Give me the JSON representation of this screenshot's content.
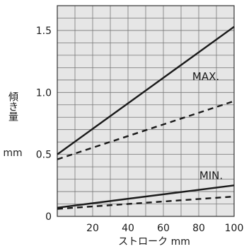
{
  "chart_data": {
    "type": "line",
    "xlabel": "ストローク mm",
    "ylabel_text": "傾き量",
    "ylabel_unit": "mm",
    "x_ticks": [
      "20",
      "40",
      "60",
      "80",
      "100"
    ],
    "y_ticks": [
      "0",
      "0.5",
      "1.0",
      "1.5"
    ],
    "xlim": [
      0,
      100
    ],
    "ylim": [
      0,
      1.7
    ],
    "grid": true,
    "annotations": [
      {
        "text": "MAX.",
        "x": 84,
        "y": 1.1
      },
      {
        "text": "MIN.",
        "x": 87,
        "y": 0.3
      }
    ],
    "series": [
      {
        "group": "MAX.",
        "style": "solid",
        "x": [
          0,
          100
        ],
        "y": [
          0.5,
          1.53
        ]
      },
      {
        "group": "MAX.",
        "style": "dashed",
        "x": [
          0,
          100
        ],
        "y": [
          0.46,
          0.93
        ]
      },
      {
        "group": "MIN.",
        "style": "solid",
        "x": [
          0,
          100
        ],
        "y": [
          0.07,
          0.25
        ]
      },
      {
        "group": "MIN.",
        "style": "dashed",
        "x": [
          0,
          100
        ],
        "y": [
          0.06,
          0.16
        ]
      }
    ],
    "colors": {
      "line": "#1a1a1a",
      "plot_background": "#e6e6e6",
      "grid": "#777777"
    }
  }
}
